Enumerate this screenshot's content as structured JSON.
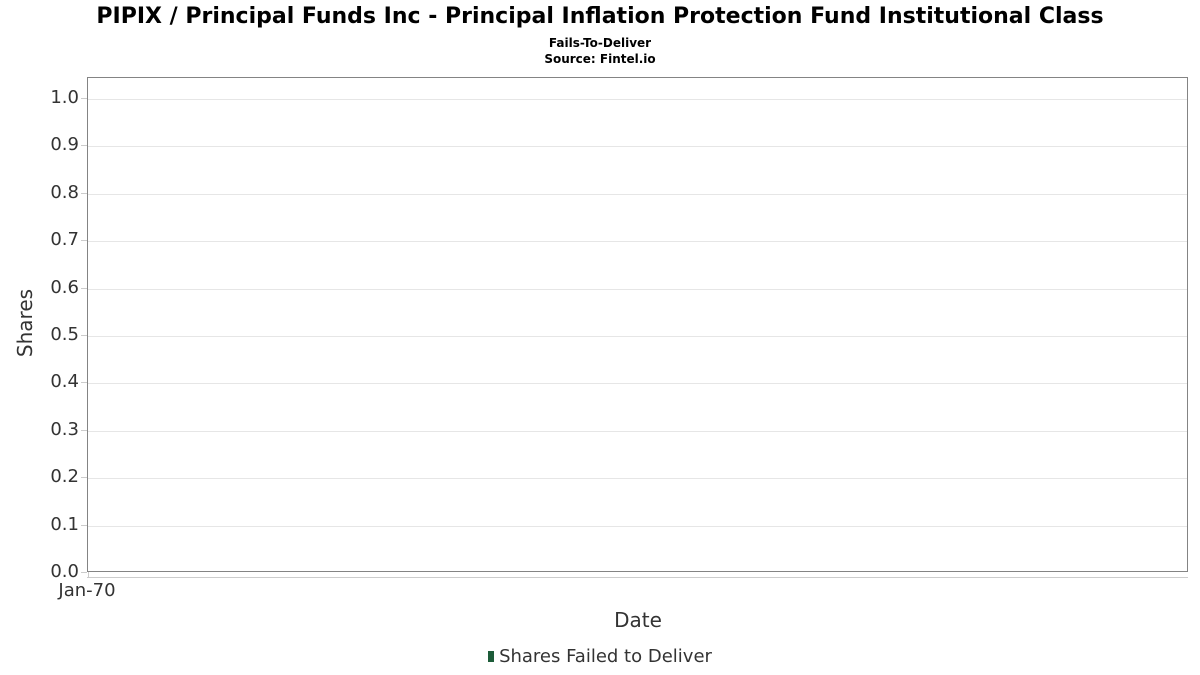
{
  "header": {
    "title": "PIPIX / Principal Funds Inc - Principal Inflation Protection Fund Institutional Class",
    "subtitle": "Fails-To-Deliver",
    "source": "Source: Fintel.io"
  },
  "chart_data": {
    "type": "bar",
    "title": "PIPIX / Principal Funds Inc - Principal Inflation Protection Fund Institutional Class",
    "subtitle": "Fails-To-Deliver",
    "source": "Source: Fintel.io",
    "xlabel": "Date",
    "ylabel": "Shares",
    "ylim": [
      0.0,
      1.0
    ],
    "ytick_labels": [
      "0.0",
      "0.1",
      "0.2",
      "0.3",
      "0.4",
      "0.5",
      "0.6",
      "0.7",
      "0.8",
      "0.9",
      "1.0"
    ],
    "xtick_labels": [
      "Jan-70"
    ],
    "categories": [
      "Jan-70"
    ],
    "series": [
      {
        "name": "Shares Failed to Deliver",
        "color": "#1d5c39",
        "values": []
      }
    ],
    "grid": true,
    "legend_position": "bottom"
  },
  "colors": {
    "title_text": "#000000",
    "axis_text": "#333333",
    "plot_border": "#848484",
    "gridline": "#e6e6e6",
    "axis_line": "#cccccc",
    "legend_marker": "#1d5c39"
  }
}
